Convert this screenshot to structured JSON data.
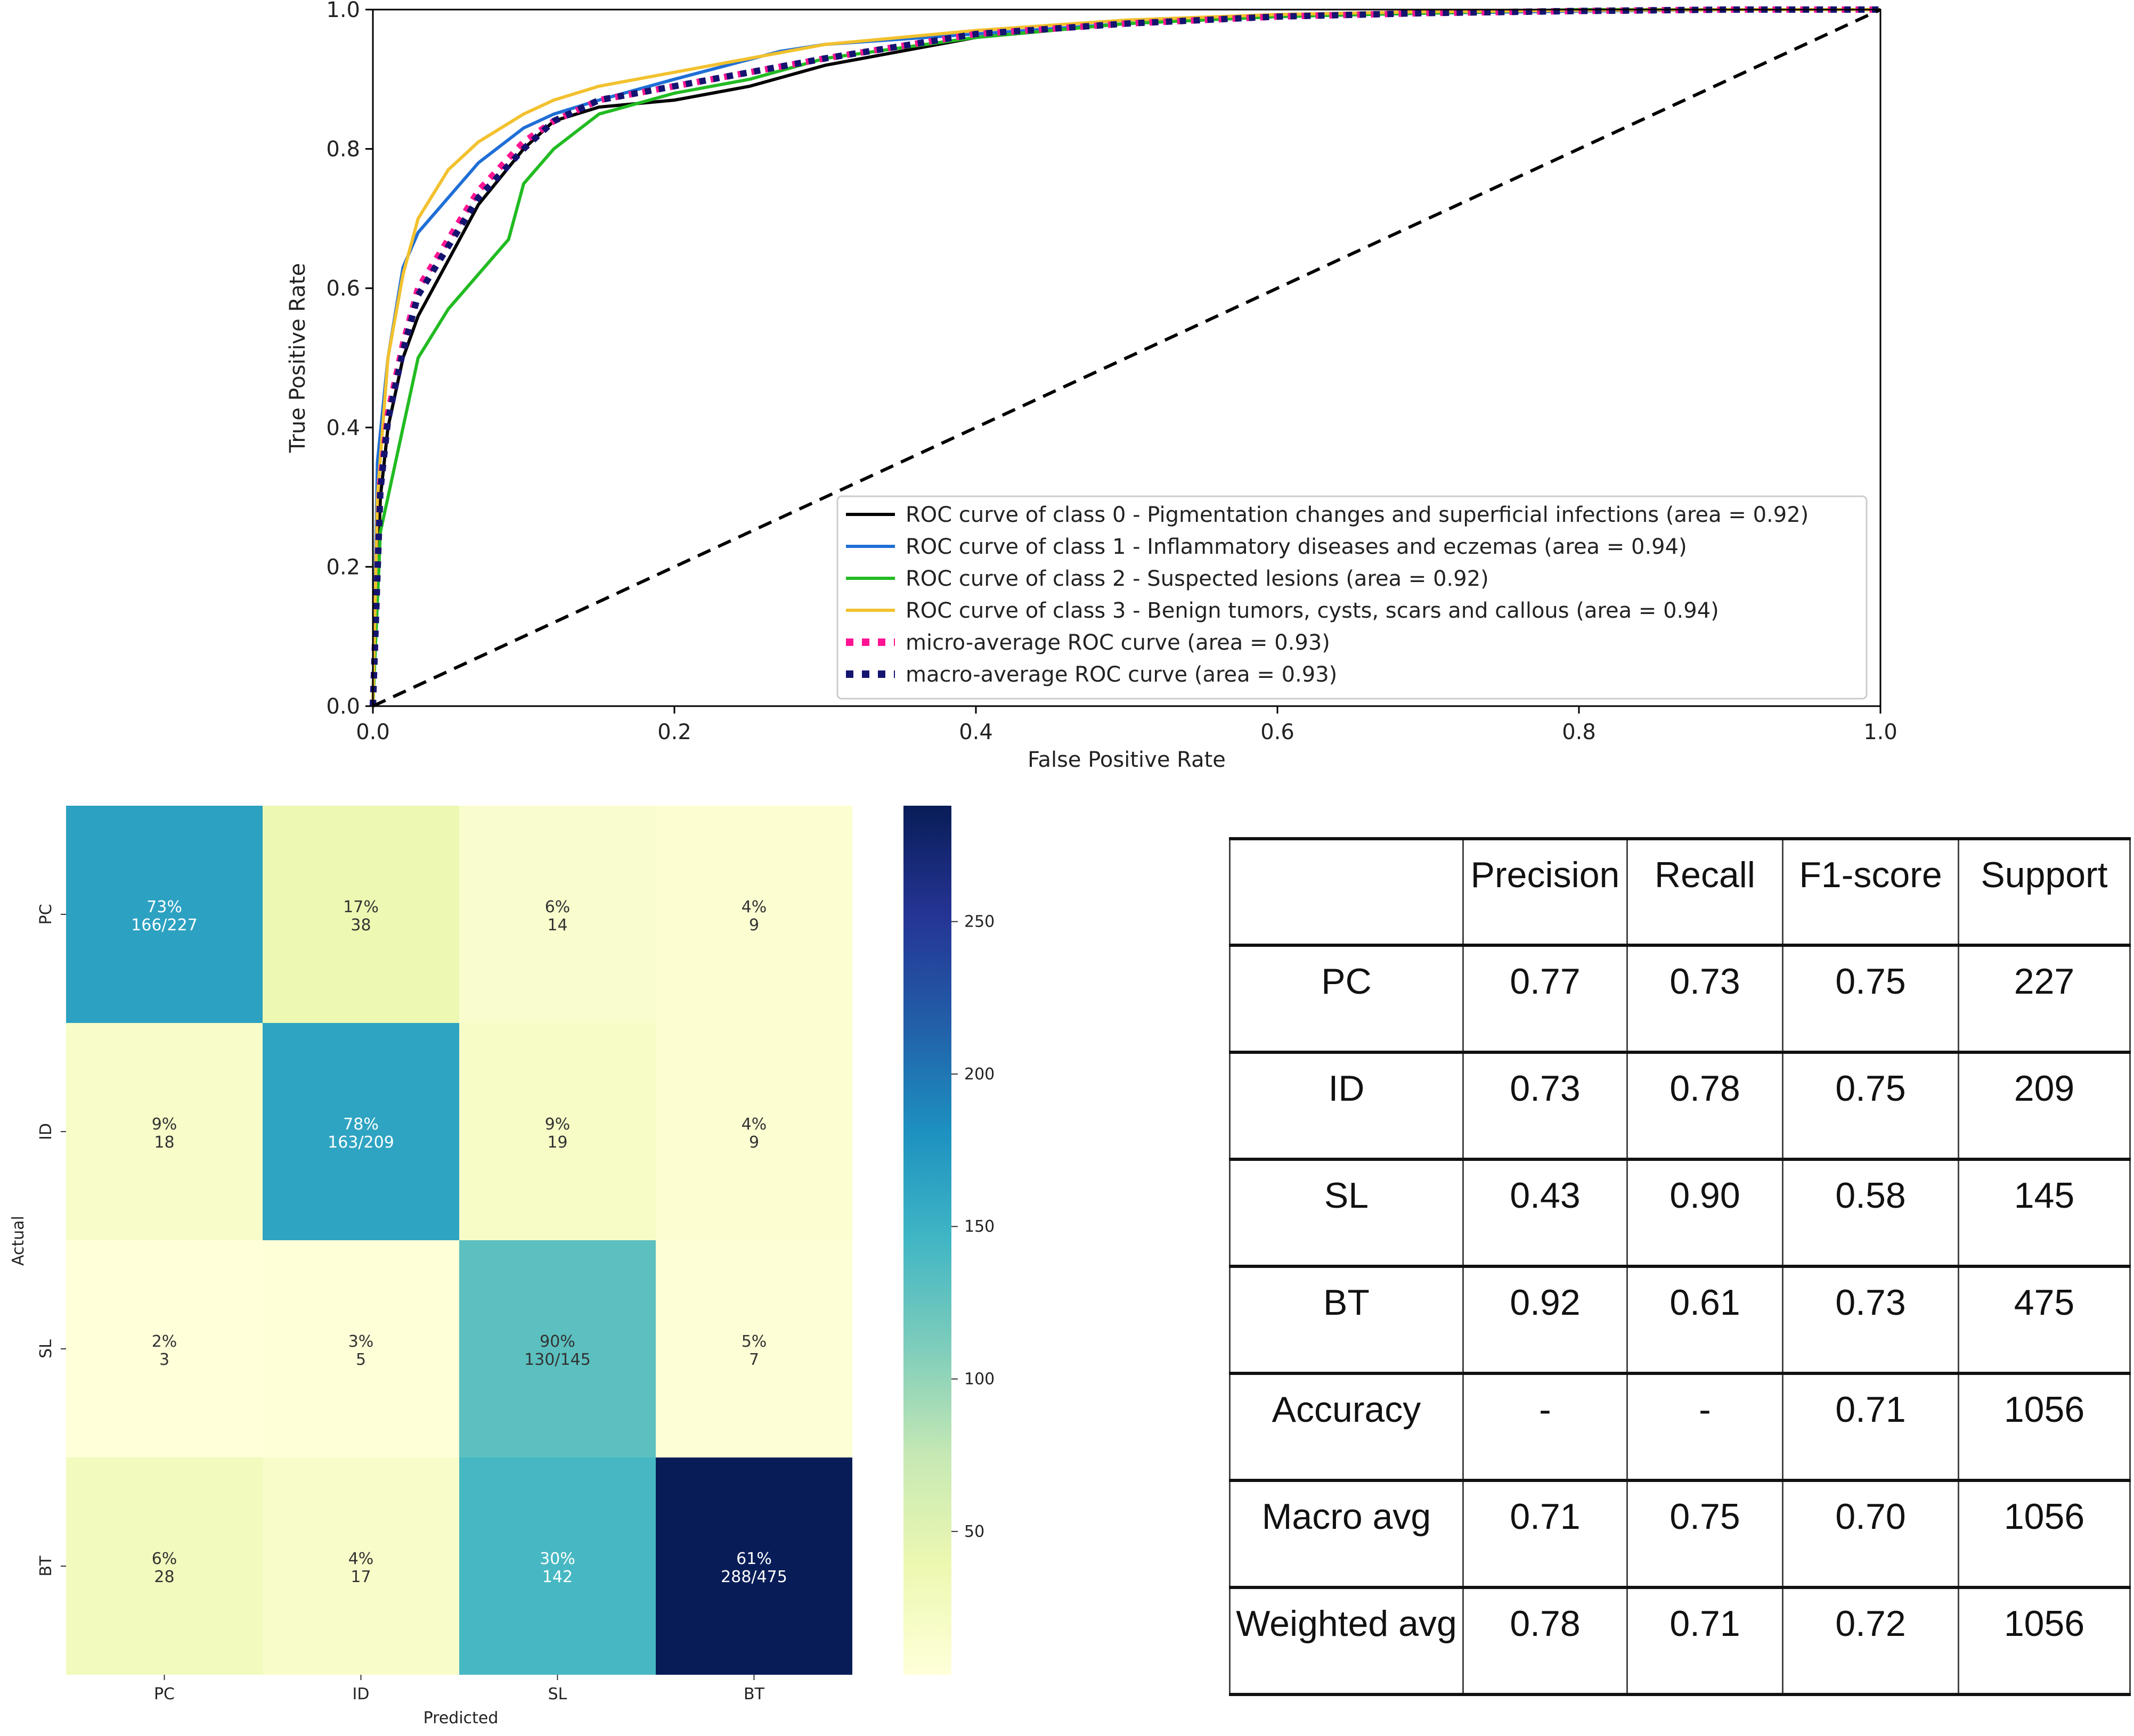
{
  "chart_data": [
    {
      "type": "line",
      "title": "",
      "xlabel": "False Positive Rate",
      "ylabel": "True Positive Rate",
      "xlim": [
        0.0,
        1.0
      ],
      "ylim": [
        0.0,
        1.0
      ],
      "xticks": [
        "0.0",
        "0.2",
        "0.4",
        "0.6",
        "0.8",
        "1.0"
      ],
      "yticks": [
        "0.0",
        "0.2",
        "0.4",
        "0.6",
        "0.8",
        "1.0"
      ],
      "legend_position": "lower-right",
      "series": [
        {
          "name": "ROC curve of class 0 - Pigmentation changes and superficial infections (area = 0.92)",
          "color": "#000000",
          "style": "solid",
          "x": [
            0,
            0.005,
            0.01,
            0.02,
            0.03,
            0.05,
            0.07,
            0.1,
            0.12,
            0.15,
            0.2,
            0.25,
            0.3,
            0.4,
            0.5,
            0.6,
            0.7,
            0.8,
            0.9,
            1.0
          ],
          "y": [
            0,
            0.3,
            0.4,
            0.5,
            0.56,
            0.64,
            0.72,
            0.8,
            0.84,
            0.86,
            0.87,
            0.89,
            0.92,
            0.96,
            0.98,
            0.99,
            0.995,
            0.998,
            1.0,
            1.0
          ]
        },
        {
          "name": "ROC curve of class 1 - Inflammatory diseases and eczemas (area = 0.94)",
          "color": "#1f6fd6",
          "style": "solid",
          "x": [
            0,
            0.003,
            0.01,
            0.02,
            0.03,
            0.05,
            0.07,
            0.1,
            0.12,
            0.15,
            0.2,
            0.27,
            0.3,
            0.4,
            0.5,
            0.6,
            0.7,
            0.8,
            0.9,
            1.0
          ],
          "y": [
            0,
            0.35,
            0.5,
            0.63,
            0.68,
            0.73,
            0.78,
            0.83,
            0.85,
            0.87,
            0.9,
            0.94,
            0.95,
            0.965,
            0.98,
            0.99,
            0.995,
            0.998,
            1.0,
            1.0
          ]
        },
        {
          "name": "ROC curve of class 2 - Suspected lesions (area = 0.92)",
          "color": "#22bb22",
          "style": "solid",
          "x": [
            0,
            0.005,
            0.01,
            0.02,
            0.03,
            0.05,
            0.07,
            0.09,
            0.1,
            0.12,
            0.15,
            0.2,
            0.25,
            0.3,
            0.4,
            0.5,
            0.6,
            0.7,
            0.8,
            1.0
          ],
          "y": [
            0,
            0.25,
            0.3,
            0.4,
            0.5,
            0.57,
            0.62,
            0.67,
            0.75,
            0.8,
            0.85,
            0.88,
            0.9,
            0.93,
            0.96,
            0.98,
            0.99,
            0.995,
            1.0,
            1.0
          ]
        },
        {
          "name": "ROC curve of class 3 - Benign tumors, cysts, scars and callous (area = 0.94)",
          "color": "#f2c12e",
          "style": "solid",
          "x": [
            0,
            0.003,
            0.01,
            0.02,
            0.03,
            0.05,
            0.07,
            0.1,
            0.12,
            0.15,
            0.2,
            0.25,
            0.3,
            0.4,
            0.5,
            0.6,
            0.7,
            0.8,
            0.9,
            1.0
          ],
          "y": [
            0,
            0.3,
            0.5,
            0.62,
            0.7,
            0.77,
            0.81,
            0.85,
            0.87,
            0.89,
            0.91,
            0.93,
            0.95,
            0.97,
            0.985,
            0.993,
            0.997,
            0.999,
            1.0,
            1.0
          ]
        },
        {
          "name": "micro-average ROC curve (area = 0.93)",
          "color": "#ff1493",
          "style": "dotted",
          "x": [
            0,
            0.005,
            0.01,
            0.02,
            0.03,
            0.05,
            0.07,
            0.1,
            0.12,
            0.15,
            0.2,
            0.25,
            0.3,
            0.4,
            0.5,
            0.6,
            0.7,
            0.8,
            0.9,
            1.0
          ],
          "y": [
            0,
            0.32,
            0.42,
            0.52,
            0.6,
            0.67,
            0.74,
            0.81,
            0.84,
            0.87,
            0.89,
            0.91,
            0.93,
            0.965,
            0.98,
            0.99,
            0.995,
            0.998,
            1.0,
            1.0
          ]
        },
        {
          "name": "macro-average ROC curve (area = 0.93)",
          "color": "#141470",
          "style": "dotted",
          "x": [
            0,
            0.005,
            0.01,
            0.02,
            0.03,
            0.05,
            0.07,
            0.1,
            0.12,
            0.15,
            0.2,
            0.25,
            0.3,
            0.4,
            0.5,
            0.6,
            0.7,
            0.8,
            0.9,
            1.0
          ],
          "y": [
            0,
            0.31,
            0.41,
            0.51,
            0.59,
            0.66,
            0.73,
            0.8,
            0.84,
            0.87,
            0.89,
            0.91,
            0.93,
            0.965,
            0.98,
            0.99,
            0.995,
            0.998,
            1.0,
            1.0
          ]
        },
        {
          "name": "chance",
          "color": "#000000",
          "style": "dashed",
          "in_legend": false,
          "x": [
            0,
            1
          ],
          "y": [
            0,
            1
          ]
        }
      ]
    },
    {
      "type": "heatmap",
      "xlabel": "Predicted",
      "ylabel": "Actual",
      "x_categories": [
        "PC",
        "ID",
        "SL",
        "BT"
      ],
      "y_categories": [
        "PC",
        "ID",
        "SL",
        "BT"
      ],
      "values": [
        [
          166,
          38,
          14,
          9
        ],
        [
          18,
          163,
          19,
          9
        ],
        [
          3,
          5,
          130,
          7
        ],
        [
          28,
          17,
          142,
          288
        ]
      ],
      "cell_labels": [
        [
          [
            "73%",
            "166/227"
          ],
          [
            "17%",
            "38"
          ],
          [
            "6%",
            "14"
          ],
          [
            "4%",
            "9"
          ]
        ],
        [
          [
            "9%",
            "18"
          ],
          [
            "78%",
            "163/209"
          ],
          [
            "9%",
            "19"
          ],
          [
            "4%",
            "9"
          ]
        ],
        [
          [
            "2%",
            "3"
          ],
          [
            "3%",
            "5"
          ],
          [
            "90%",
            "130/145"
          ],
          [
            "5%",
            "7"
          ]
        ],
        [
          [
            "6%",
            "28"
          ],
          [
            "4%",
            "17"
          ],
          [
            "30%",
            "142"
          ],
          [
            "61%",
            "288/475"
          ]
        ]
      ],
      "colormap": "YlGnBu",
      "color_range": [
        3,
        288
      ],
      "colorbar_ticks": [
        "250",
        "200",
        "150",
        "100",
        "50"
      ],
      "colorbar_tick_values": [
        250,
        200,
        150,
        100,
        50
      ]
    },
    {
      "type": "table",
      "columns": [
        "",
        "Precision",
        "Recall",
        "F1-score",
        "Support"
      ],
      "rows": [
        [
          "PC",
          "0.77",
          "0.73",
          "0.75",
          "227"
        ],
        [
          "ID",
          "0.73",
          "0.78",
          "0.75",
          "209"
        ],
        [
          "SL",
          "0.43",
          "0.90",
          "0.58",
          "145"
        ],
        [
          "BT",
          "0.92",
          "0.61",
          "0.73",
          "475"
        ],
        [
          "Accuracy",
          "-",
          "-",
          "0.71",
          "1056"
        ],
        [
          "Macro avg",
          "0.71",
          "0.75",
          "0.70",
          "1056"
        ],
        [
          "Weighted avg",
          "0.78",
          "0.71",
          "0.72",
          "1056"
        ]
      ]
    }
  ]
}
